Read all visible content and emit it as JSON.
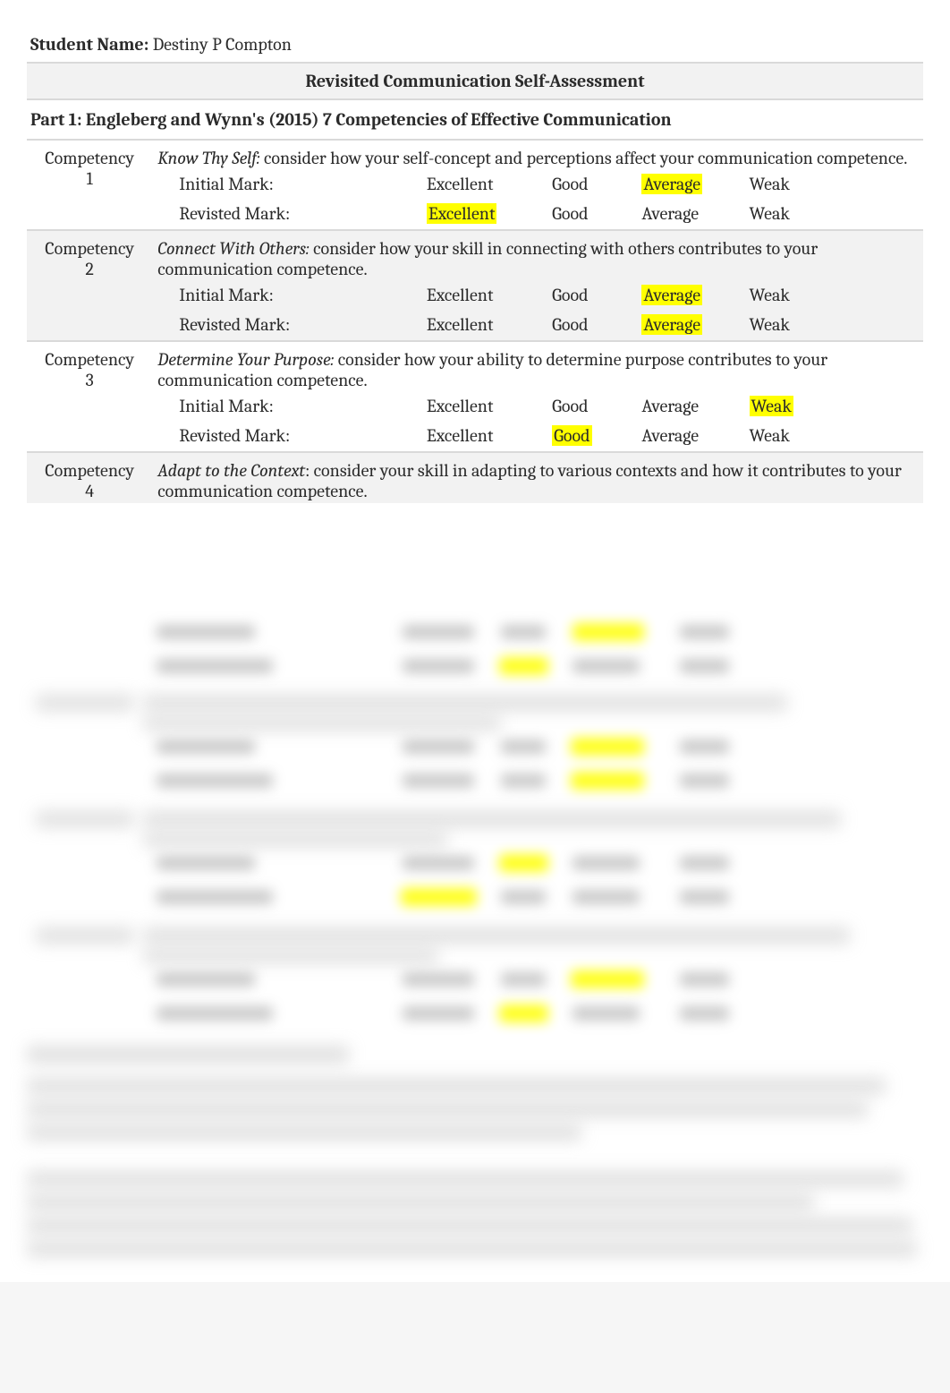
{
  "header": {
    "student_label": "Student Name:",
    "student_name": "Destiny P Compton",
    "title": "Revisited Communication Self-Assessment",
    "part1": "Part 1: Engleberg and Wynn's (2015) 7 Competencies of Effective Communication"
  },
  "labels": {
    "initial": "Initial Mark:",
    "revisted": "Revisted Mark:"
  },
  "options": {
    "excellent": "Excellent",
    "good": "Good",
    "average": "Average",
    "weak": "Weak"
  },
  "competencies": [
    {
      "label": "Competency 1",
      "title": "Know Thy Self:",
      "desc": " consider how your self-concept and perceptions affect your communication competence.",
      "shaded": false,
      "initial_hl": "average",
      "revisted_hl": "excellent"
    },
    {
      "label": "Competency 2",
      "title": "Connect With Others:",
      "desc": " consider how your skill in connecting with others contributes to your communication competence.",
      "shaded": true,
      "initial_hl": "average",
      "revisted_hl": "average"
    },
    {
      "label": "Competency 3",
      "title": "Determine Your Purpose:",
      "desc": " consider how your ability to determine purpose contributes to your communication competence.",
      "shaded": false,
      "initial_hl": "weak",
      "revisted_hl": "good"
    },
    {
      "label": "Competency 4",
      "title": "Adapt to the Context",
      "desc": ": consider your skill in adapting to various contexts and how it contributes to your communication competence.",
      "shaded": true,
      "initial_hl": "",
      "revisted_hl": ""
    }
  ]
}
